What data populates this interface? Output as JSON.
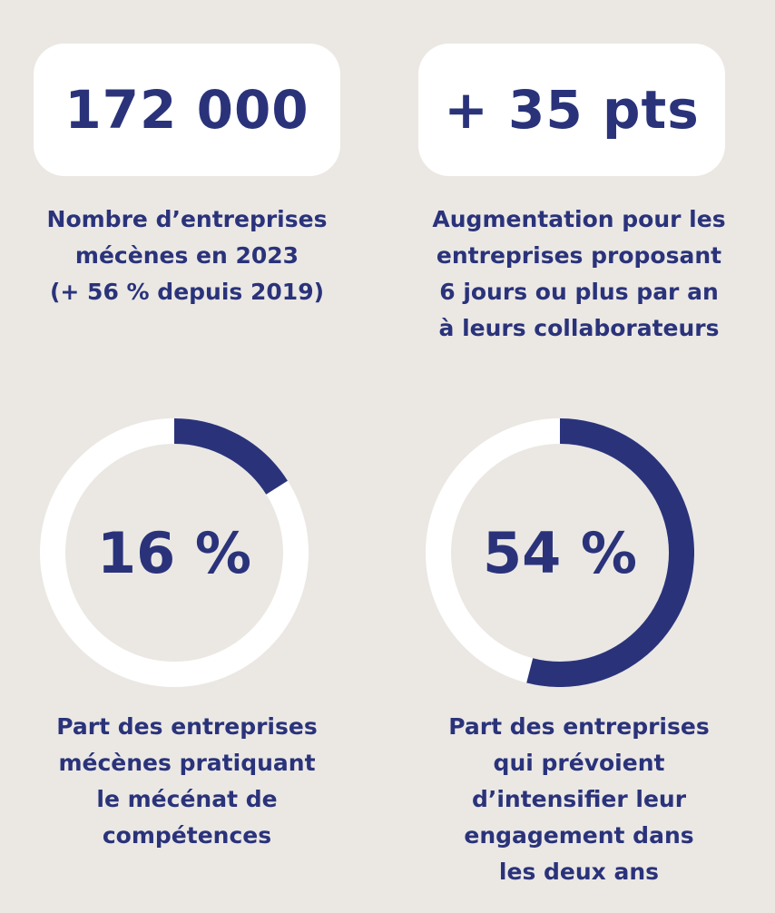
{
  "colors": {
    "background": "#ebe8e4",
    "card": "#ffffff",
    "navy": "#2a337a",
    "ring_track": "#ffffff"
  },
  "top_stats": [
    {
      "value": "172 000",
      "caption": "Nombre d’entreprises\nmécènes en 2023\n(+ 56 % depuis 2019)"
    },
    {
      "value": "+ 35 pts",
      "caption": "Augmentation pour les\nentreprises proposant\n6 jours ou plus par an\nà leurs collaborateurs"
    }
  ],
  "chart_data": [
    {
      "type": "pie",
      "value": 16,
      "unit": "%",
      "label": "16 %",
      "caption": "Part des entreprises\nmécènes pratiquant\nle mécénat de\ncompétences"
    },
    {
      "type": "pie",
      "value": 54,
      "unit": "%",
      "label": "54 %",
      "caption": "Part des entreprises\nqui prévoient\nd’intensifier leur\nengagement dans\nles deux ans"
    }
  ]
}
